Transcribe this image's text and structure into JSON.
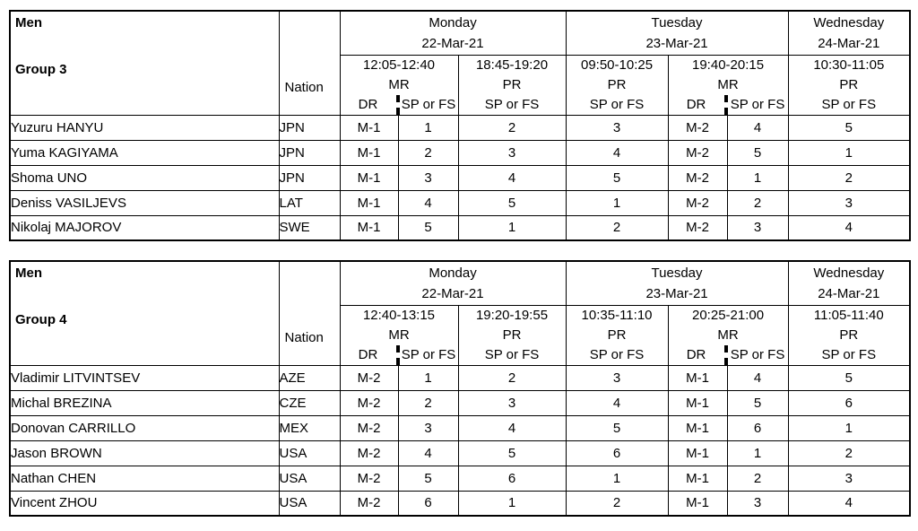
{
  "page": {
    "background": "#ffffff",
    "border_color": "#000000",
    "text_color": "#000000"
  },
  "tables": [
    {
      "category": "Men",
      "group": "Group 3",
      "nation_label": "Nation",
      "dr_label": "DR",
      "skate_label": "SP or FS",
      "days": [
        {
          "name": "Monday",
          "date": "22-Mar-21",
          "sessions": [
            {
              "time": "12:05-12:40",
              "rink": "MR",
              "dr": true
            },
            {
              "time": "18:45-19:20",
              "rink": "PR",
              "dr": false
            }
          ]
        },
        {
          "name": "Tuesday",
          "date": "23-Mar-21",
          "sessions": [
            {
              "time": "09:50-10:25",
              "rink": "PR",
              "dr": false
            },
            {
              "time": "19:40-20:15",
              "rink": "MR",
              "dr": true
            }
          ]
        },
        {
          "name": "Wednesday",
          "date": "24-Mar-21",
          "sessions": [
            {
              "time": "10:30-11:05",
              "rink": "PR",
              "dr": false
            }
          ]
        }
      ],
      "rows": [
        {
          "name": "Yuzuru HANYU",
          "nation": "JPN",
          "cells": [
            "M-1",
            "1",
            "2",
            "3",
            "M-2",
            "4",
            "5"
          ]
        },
        {
          "name": "Yuma KAGIYAMA",
          "nation": "JPN",
          "cells": [
            "M-1",
            "2",
            "3",
            "4",
            "M-2",
            "5",
            "1"
          ]
        },
        {
          "name": "Shoma UNO",
          "nation": "JPN",
          "cells": [
            "M-1",
            "3",
            "4",
            "5",
            "M-2",
            "1",
            "2"
          ]
        },
        {
          "name": "Deniss VASILJEVS",
          "nation": "LAT",
          "cells": [
            "M-1",
            "4",
            "5",
            "1",
            "M-2",
            "2",
            "3"
          ]
        },
        {
          "name": "Nikolaj MAJOROV",
          "nation": "SWE",
          "cells": [
            "M-1",
            "5",
            "1",
            "2",
            "M-2",
            "3",
            "4"
          ]
        }
      ]
    },
    {
      "category": "Men",
      "group": "Group 4",
      "nation_label": "Nation",
      "dr_label": "DR",
      "skate_label": "SP or FS",
      "days": [
        {
          "name": "Monday",
          "date": "22-Mar-21",
          "sessions": [
            {
              "time": "12:40-13:15",
              "rink": "MR",
              "dr": true
            },
            {
              "time": "19:20-19:55",
              "rink": "PR",
              "dr": false
            }
          ]
        },
        {
          "name": "Tuesday",
          "date": "23-Mar-21",
          "sessions": [
            {
              "time": "10:35-11:10",
              "rink": "PR",
              "dr": false
            },
            {
              "time": "20:25-21:00",
              "rink": "MR",
              "dr": true
            }
          ]
        },
        {
          "name": "Wednesday",
          "date": "24-Mar-21",
          "sessions": [
            {
              "time": "11:05-11:40",
              "rink": "PR",
              "dr": false
            }
          ]
        }
      ],
      "rows": [
        {
          "name": "Vladimir LITVINTSEV",
          "nation": "AZE",
          "cells": [
            "M-2",
            "1",
            "2",
            "3",
            "M-1",
            "4",
            "5"
          ]
        },
        {
          "name": "Michal BREZINA",
          "nation": "CZE",
          "cells": [
            "M-2",
            "2",
            "3",
            "4",
            "M-1",
            "5",
            "6"
          ]
        },
        {
          "name": "Donovan CARRILLO",
          "nation": "MEX",
          "cells": [
            "M-2",
            "3",
            "4",
            "5",
            "M-1",
            "6",
            "1"
          ]
        },
        {
          "name": "Jason BROWN",
          "nation": "USA",
          "cells": [
            "M-2",
            "4",
            "5",
            "6",
            "M-1",
            "1",
            "2"
          ]
        },
        {
          "name": "Nathan CHEN",
          "nation": "USA",
          "cells": [
            "M-2",
            "5",
            "6",
            "1",
            "M-1",
            "2",
            "3"
          ]
        },
        {
          "name": "Vincent ZHOU",
          "nation": "USA",
          "cells": [
            "M-2",
            "6",
            "1",
            "2",
            "M-1",
            "3",
            "4"
          ]
        }
      ]
    }
  ]
}
